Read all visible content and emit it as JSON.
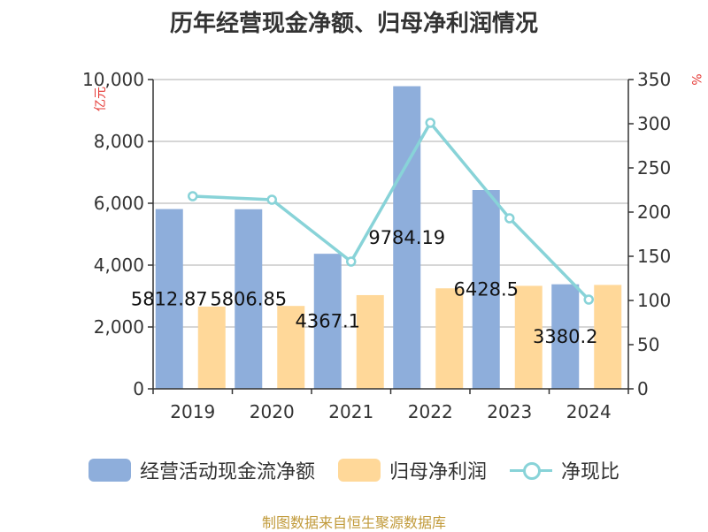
{
  "chart_data": {
    "type": "bar",
    "title": "历年经营现金净额、归母净利润情况",
    "categories": [
      "2019",
      "2020",
      "2021",
      "2022",
      "2023",
      "2024"
    ],
    "series": [
      {
        "name": "经营活动现金流净额",
        "type": "bar",
        "axis": "left",
        "values": [
          5812.87,
          5806.85,
          4367.1,
          9784.19,
          6428.5,
          3380.2
        ],
        "data_labels": [
          "5812.87",
          "5806.85",
          "4367.1",
          "9784.19",
          "6428.5",
          "3380.2"
        ],
        "color": "#8eaedb"
      },
      {
        "name": "归母净利润",
        "type": "bar",
        "axis": "left",
        "values": [
          2660,
          2680,
          3030,
          3250,
          3330,
          3360
        ],
        "color": "#ffd899"
      },
      {
        "name": "净现比",
        "type": "line",
        "axis": "right",
        "values": [
          218,
          214,
          144,
          301,
          193,
          101
        ],
        "color": "#88d3d8"
      }
    ],
    "y_left": {
      "unit": "亿元",
      "ylim": [
        0,
        10000
      ],
      "ticks": [
        0,
        2000,
        4000,
        6000,
        8000,
        10000
      ],
      "tick_labels": [
        "0",
        "2,000",
        "4,000",
        "6,000",
        "8,000",
        "10,000"
      ]
    },
    "y_right": {
      "unit": "%",
      "ylim": [
        0,
        350
      ],
      "ticks": [
        0,
        50,
        100,
        150,
        200,
        250,
        300,
        350
      ],
      "tick_labels": [
        "0",
        "50",
        "100",
        "150",
        "200",
        "250",
        "300",
        "350"
      ]
    },
    "grid": true,
    "legend": "bottom"
  },
  "source": "制图数据来自恒生聚源数据库"
}
